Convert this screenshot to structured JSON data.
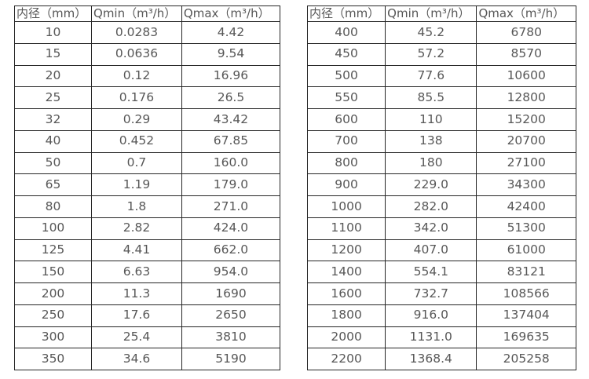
{
  "colors": {
    "border": "#262626",
    "text": "#575757",
    "background": "#ffffff"
  },
  "left_table": {
    "headers": [
      "内径（mm）",
      "Qmin（m³/h）",
      "Qmax（m³/h）"
    ],
    "rows": [
      [
        "10",
        "0.0283",
        "4.42"
      ],
      [
        "15",
        "0.0636",
        "9.54"
      ],
      [
        "20",
        "0.12",
        "16.96"
      ],
      [
        "25",
        "0.176",
        "26.5"
      ],
      [
        "32",
        "0.29",
        "43.42"
      ],
      [
        "40",
        "0.452",
        "67.85"
      ],
      [
        "50",
        "0.7",
        "160.0"
      ],
      [
        "65",
        "1.19",
        "179.0"
      ],
      [
        "80",
        "1.8",
        "271.0"
      ],
      [
        "100",
        "2.82",
        "424.0"
      ],
      [
        "125",
        "4.41",
        "662.0"
      ],
      [
        "150",
        "6.63",
        "954.0"
      ],
      [
        "200",
        "11.3",
        "1690"
      ],
      [
        "250",
        "17.6",
        "2650"
      ],
      [
        "300",
        "25.4",
        "3810"
      ],
      [
        "350",
        "34.6",
        "5190"
      ]
    ]
  },
  "right_table": {
    "headers": [
      "内径（mm）",
      "Qmin（m³/h）",
      "Qmax（m³/h）"
    ],
    "rows": [
      [
        "400",
        "45.2",
        "6780"
      ],
      [
        "450",
        "57.2",
        "8570"
      ],
      [
        "500",
        "77.6",
        "10600"
      ],
      [
        "550",
        "85.5",
        "12800"
      ],
      [
        "600",
        "110",
        "15200"
      ],
      [
        "700",
        "138",
        "20700"
      ],
      [
        "800",
        "180",
        "27100"
      ],
      [
        "900",
        "229.0",
        "34300"
      ],
      [
        "1000",
        "282.0",
        "42400"
      ],
      [
        "1100",
        "342.0",
        "51300"
      ],
      [
        "1200",
        "407.0",
        "61000"
      ],
      [
        "1400",
        "554.1",
        "83121"
      ],
      [
        "1600",
        "732.7",
        "108566"
      ],
      [
        "1800",
        "916.0",
        "137404"
      ],
      [
        "2000",
        "1131.0",
        "169635"
      ],
      [
        "2200",
        "1368.4",
        "205258"
      ]
    ]
  }
}
